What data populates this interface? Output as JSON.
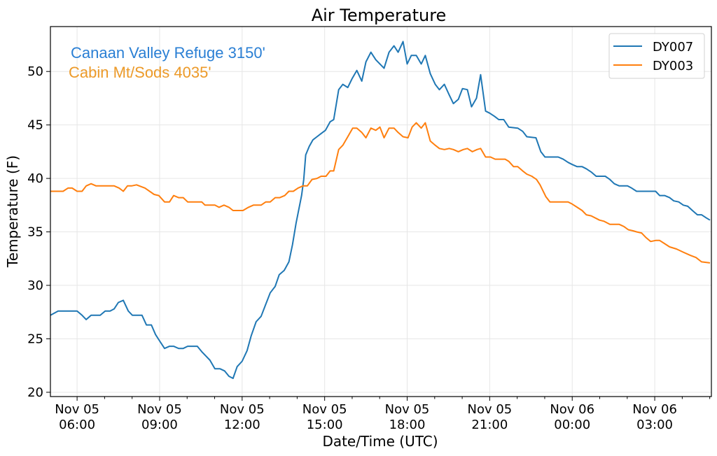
{
  "chart_data": {
    "type": "line",
    "title": "Air Temperature",
    "xlabel": "Date/Time (UTC)",
    "ylabel": "Temperature (F)",
    "x_units": "hours since Nov 05 00:00 UTC",
    "xlim": [
      5.03,
      29.06
    ],
    "ylim": [
      19.6,
      54.2
    ],
    "grid": true,
    "legend_position": "top-right",
    "x_ticks": [
      {
        "value": 6,
        "line1": "Nov 05",
        "line2": "06:00"
      },
      {
        "value": 9,
        "line1": "Nov 05",
        "line2": "09:00"
      },
      {
        "value": 12,
        "line1": "Nov 05",
        "line2": "12:00"
      },
      {
        "value": 15,
        "line1": "Nov 05",
        "line2": "15:00"
      },
      {
        "value": 18,
        "line1": "Nov 05",
        "line2": "18:00"
      },
      {
        "value": 21,
        "line1": "Nov 05",
        "line2": "21:00"
      },
      {
        "value": 24,
        "line1": "Nov 06",
        "line2": "00:00"
      },
      {
        "value": 27,
        "line1": "Nov 06",
        "line2": "03:00"
      }
    ],
    "x_minor_ticks": [
      7,
      8,
      10,
      11,
      13,
      14,
      16,
      17,
      19,
      20,
      22,
      23,
      25,
      26,
      28,
      29
    ],
    "y_ticks": [
      {
        "value": 20,
        "label": "20"
      },
      {
        "value": 25,
        "label": "25"
      },
      {
        "value": 30,
        "label": "30"
      },
      {
        "value": 35,
        "label": "35"
      },
      {
        "value": 40,
        "label": "40"
      },
      {
        "value": 45,
        "label": "45"
      },
      {
        "value": 50,
        "label": "50"
      }
    ],
    "annotations": [
      {
        "text": "Canaan Valley Refuge 3150'",
        "color": "#2a7fd4"
      },
      {
        "text": "Cabin Mt/Sods 4035'",
        "color": "#ec9a29"
      }
    ],
    "series": [
      {
        "name": "DY007",
        "color": "#1f77b4",
        "points": [
          [
            5.03,
            27.2
          ],
          [
            5.31,
            27.6
          ],
          [
            6.0,
            27.6
          ],
          [
            6.18,
            27.2
          ],
          [
            6.33,
            26.8
          ],
          [
            6.51,
            27.2
          ],
          [
            6.84,
            27.2
          ],
          [
            7.02,
            27.6
          ],
          [
            7.2,
            27.6
          ],
          [
            7.35,
            27.8
          ],
          [
            7.5,
            28.4
          ],
          [
            7.68,
            28.6
          ],
          [
            7.86,
            27.6
          ],
          [
            8.01,
            27.2
          ],
          [
            8.36,
            27.2
          ],
          [
            8.52,
            26.3
          ],
          [
            8.7,
            26.3
          ],
          [
            8.85,
            25.4
          ],
          [
            9.0,
            24.8
          ],
          [
            9.18,
            24.1
          ],
          [
            9.36,
            24.3
          ],
          [
            9.51,
            24.3
          ],
          [
            9.69,
            24.1
          ],
          [
            9.86,
            24.1
          ],
          [
            10.02,
            24.3
          ],
          [
            10.37,
            24.3
          ],
          [
            10.53,
            23.8
          ],
          [
            10.83,
            23.0
          ],
          [
            11.01,
            22.2
          ],
          [
            11.19,
            22.2
          ],
          [
            11.36,
            22.0
          ],
          [
            11.52,
            21.5
          ],
          [
            11.67,
            21.3
          ],
          [
            11.82,
            22.4
          ],
          [
            12.0,
            22.9
          ],
          [
            12.18,
            23.9
          ],
          [
            12.33,
            25.3
          ],
          [
            12.51,
            26.6
          ],
          [
            12.69,
            27.1
          ],
          [
            12.84,
            28.1
          ],
          [
            13.02,
            29.3
          ],
          [
            13.2,
            29.9
          ],
          [
            13.35,
            31.0
          ],
          [
            13.53,
            31.4
          ],
          [
            13.7,
            32.2
          ],
          [
            13.83,
            33.8
          ],
          [
            13.96,
            35.8
          ],
          [
            14.16,
            38.4
          ],
          [
            14.24,
            39.9
          ],
          [
            14.31,
            42.2
          ],
          [
            14.44,
            43.0
          ],
          [
            14.57,
            43.6
          ],
          [
            14.72,
            43.9
          ],
          [
            14.87,
            44.2
          ],
          [
            15.03,
            44.5
          ],
          [
            15.2,
            45.3
          ],
          [
            15.33,
            45.5
          ],
          [
            15.51,
            48.3
          ],
          [
            15.66,
            48.8
          ],
          [
            15.84,
            48.5
          ],
          [
            15.99,
            49.3
          ],
          [
            16.17,
            50.1
          ],
          [
            16.35,
            49.1
          ],
          [
            16.5,
            50.9
          ],
          [
            16.68,
            51.8
          ],
          [
            16.86,
            51.1
          ],
          [
            17.16,
            50.3
          ],
          [
            17.34,
            51.8
          ],
          [
            17.52,
            52.4
          ],
          [
            17.67,
            51.8
          ],
          [
            17.85,
            52.8
          ],
          [
            18.0,
            50.7
          ],
          [
            18.15,
            51.5
          ],
          [
            18.33,
            51.5
          ],
          [
            18.51,
            50.7
          ],
          [
            18.66,
            51.5
          ],
          [
            18.84,
            49.8
          ],
          [
            19.02,
            48.8
          ],
          [
            19.17,
            48.3
          ],
          [
            19.35,
            48.8
          ],
          [
            19.53,
            47.8
          ],
          [
            19.68,
            47.0
          ],
          [
            19.86,
            47.4
          ],
          [
            20.01,
            48.4
          ],
          [
            20.19,
            48.3
          ],
          [
            20.34,
            46.7
          ],
          [
            20.52,
            47.5
          ],
          [
            20.67,
            49.7
          ],
          [
            20.85,
            46.3
          ],
          [
            21.0,
            46.1
          ],
          [
            21.18,
            45.8
          ],
          [
            21.33,
            45.5
          ],
          [
            21.51,
            45.5
          ],
          [
            21.69,
            44.8
          ],
          [
            22.02,
            44.7
          ],
          [
            22.2,
            44.4
          ],
          [
            22.35,
            43.9
          ],
          [
            22.68,
            43.8
          ],
          [
            22.86,
            42.5
          ],
          [
            23.01,
            42.0
          ],
          [
            23.49,
            42.0
          ],
          [
            23.67,
            41.8
          ],
          [
            23.85,
            41.5
          ],
          [
            24.0,
            41.3
          ],
          [
            24.18,
            41.1
          ],
          [
            24.36,
            41.1
          ],
          [
            24.51,
            40.9
          ],
          [
            24.69,
            40.6
          ],
          [
            24.87,
            40.2
          ],
          [
            25.2,
            40.2
          ],
          [
            25.37,
            39.9
          ],
          [
            25.53,
            39.5
          ],
          [
            25.71,
            39.3
          ],
          [
            26.01,
            39.3
          ],
          [
            26.16,
            39.1
          ],
          [
            26.34,
            38.8
          ],
          [
            27.03,
            38.8
          ],
          [
            27.18,
            38.4
          ],
          [
            27.36,
            38.4
          ],
          [
            27.54,
            38.2
          ],
          [
            27.69,
            37.9
          ],
          [
            27.87,
            37.8
          ],
          [
            28.04,
            37.5
          ],
          [
            28.2,
            37.4
          ],
          [
            28.37,
            37.0
          ],
          [
            28.55,
            36.6
          ],
          [
            28.7,
            36.6
          ],
          [
            28.88,
            36.3
          ],
          [
            29.01,
            36.1
          ]
        ]
      },
      {
        "name": "DY003",
        "color": "#ff7f0e",
        "points": [
          [
            5.03,
            38.8
          ],
          [
            5.49,
            38.8
          ],
          [
            5.67,
            39.1
          ],
          [
            5.82,
            39.1
          ],
          [
            6.0,
            38.8
          ],
          [
            6.18,
            38.8
          ],
          [
            6.33,
            39.3
          ],
          [
            6.51,
            39.5
          ],
          [
            6.69,
            39.3
          ],
          [
            7.35,
            39.3
          ],
          [
            7.53,
            39.1
          ],
          [
            7.68,
            38.8
          ],
          [
            7.83,
            39.3
          ],
          [
            7.98,
            39.3
          ],
          [
            8.16,
            39.4
          ],
          [
            8.47,
            39.1
          ],
          [
            8.8,
            38.5
          ],
          [
            8.97,
            38.4
          ],
          [
            9.18,
            37.8
          ],
          [
            9.36,
            37.8
          ],
          [
            9.51,
            38.4
          ],
          [
            9.69,
            38.2
          ],
          [
            9.86,
            38.2
          ],
          [
            10.02,
            37.8
          ],
          [
            10.53,
            37.8
          ],
          [
            10.65,
            37.5
          ],
          [
            11.01,
            37.5
          ],
          [
            11.16,
            37.3
          ],
          [
            11.34,
            37.5
          ],
          [
            11.52,
            37.3
          ],
          [
            11.67,
            37.0
          ],
          [
            12.03,
            37.0
          ],
          [
            12.23,
            37.3
          ],
          [
            12.41,
            37.5
          ],
          [
            12.69,
            37.5
          ],
          [
            12.86,
            37.8
          ],
          [
            13.02,
            37.8
          ],
          [
            13.2,
            38.2
          ],
          [
            13.37,
            38.2
          ],
          [
            13.55,
            38.4
          ],
          [
            13.7,
            38.8
          ],
          [
            13.86,
            38.8
          ],
          [
            14.03,
            39.1
          ],
          [
            14.21,
            39.3
          ],
          [
            14.37,
            39.3
          ],
          [
            14.54,
            39.9
          ],
          [
            14.72,
            40.0
          ],
          [
            14.87,
            40.2
          ],
          [
            15.05,
            40.2
          ],
          [
            15.2,
            40.7
          ],
          [
            15.33,
            40.7
          ],
          [
            15.51,
            42.7
          ],
          [
            15.66,
            43.1
          ],
          [
            15.84,
            43.9
          ],
          [
            16.02,
            44.7
          ],
          [
            16.17,
            44.7
          ],
          [
            16.35,
            44.3
          ],
          [
            16.5,
            43.8
          ],
          [
            16.68,
            44.7
          ],
          [
            16.86,
            44.5
          ],
          [
            17.01,
            44.8
          ],
          [
            17.16,
            43.8
          ],
          [
            17.34,
            44.7
          ],
          [
            17.52,
            44.7
          ],
          [
            17.67,
            44.3
          ],
          [
            17.85,
            43.9
          ],
          [
            18.03,
            43.8
          ],
          [
            18.18,
            44.8
          ],
          [
            18.33,
            45.2
          ],
          [
            18.51,
            44.7
          ],
          [
            18.66,
            45.2
          ],
          [
            18.84,
            43.5
          ],
          [
            19.02,
            43.1
          ],
          [
            19.17,
            42.8
          ],
          [
            19.35,
            42.7
          ],
          [
            19.53,
            42.8
          ],
          [
            19.68,
            42.7
          ],
          [
            19.86,
            42.5
          ],
          [
            20.04,
            42.7
          ],
          [
            20.19,
            42.8
          ],
          [
            20.37,
            42.5
          ],
          [
            20.54,
            42.7
          ],
          [
            20.67,
            42.8
          ],
          [
            20.85,
            42.0
          ],
          [
            21.03,
            42.0
          ],
          [
            21.2,
            41.8
          ],
          [
            21.56,
            41.8
          ],
          [
            21.69,
            41.6
          ],
          [
            21.87,
            41.1
          ],
          [
            22.02,
            41.1
          ],
          [
            22.2,
            40.7
          ],
          [
            22.35,
            40.4
          ],
          [
            22.53,
            40.2
          ],
          [
            22.7,
            39.9
          ],
          [
            22.83,
            39.4
          ],
          [
            23.04,
            38.3
          ],
          [
            23.19,
            37.8
          ],
          [
            23.85,
            37.8
          ],
          [
            24.0,
            37.6
          ],
          [
            24.18,
            37.3
          ],
          [
            24.36,
            37.0
          ],
          [
            24.51,
            36.6
          ],
          [
            24.69,
            36.5
          ],
          [
            24.99,
            36.1
          ],
          [
            25.15,
            36.0
          ],
          [
            25.37,
            35.7
          ],
          [
            25.71,
            35.7
          ],
          [
            25.88,
            35.5
          ],
          [
            26.04,
            35.2
          ],
          [
            26.21,
            35.1
          ],
          [
            26.34,
            35.0
          ],
          [
            26.52,
            34.9
          ],
          [
            26.67,
            34.5
          ],
          [
            26.85,
            34.1
          ],
          [
            27.03,
            34.2
          ],
          [
            27.18,
            34.2
          ],
          [
            27.36,
            33.9
          ],
          [
            27.54,
            33.6
          ],
          [
            27.79,
            33.4
          ],
          [
            28.04,
            33.1
          ],
          [
            28.3,
            32.8
          ],
          [
            28.5,
            32.6
          ],
          [
            28.7,
            32.2
          ],
          [
            29.01,
            32.1
          ]
        ]
      }
    ]
  }
}
